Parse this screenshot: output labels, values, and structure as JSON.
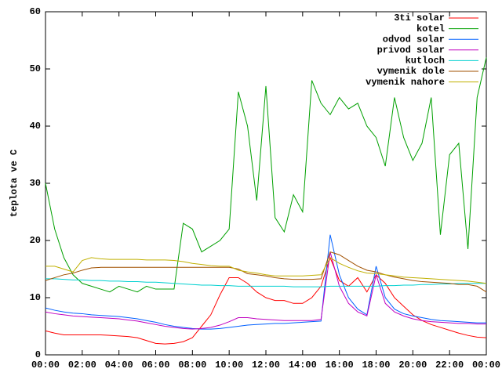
{
  "chart_data": {
    "type": "line",
    "ylabel": "teplota ve C",
    "x": [
      0,
      0.5,
      1,
      1.5,
      2,
      2.5,
      3,
      3.5,
      4,
      4.5,
      5,
      5.5,
      6,
      6.5,
      7,
      7.5,
      8,
      8.5,
      9,
      9.5,
      10,
      10.5,
      11,
      11.5,
      12,
      12.5,
      13,
      13.5,
      14,
      14.5,
      15,
      15.5,
      16,
      16.5,
      17,
      17.5,
      18,
      18.5,
      19,
      19.5,
      20,
      20.5,
      21,
      21.5,
      22,
      22.5,
      23,
      23.5,
      24
    ],
    "xlim": [
      0,
      24
    ],
    "xticks": [
      {
        "value": 0,
        "label": "00:00"
      },
      {
        "value": 2,
        "label": "02:00"
      },
      {
        "value": 4,
        "label": "04:00"
      },
      {
        "value": 6,
        "label": "06:00"
      },
      {
        "value": 8,
        "label": "08:00"
      },
      {
        "value": 10,
        "label": "10:00"
      },
      {
        "value": 12,
        "label": "12:00"
      },
      {
        "value": 14,
        "label": "14:00"
      },
      {
        "value": 16,
        "label": "16:00"
      },
      {
        "value": 18,
        "label": "18:00"
      },
      {
        "value": 20,
        "label": "20:00"
      },
      {
        "value": 22,
        "label": "22:00"
      },
      {
        "value": 24,
        "label": "00:00"
      }
    ],
    "ylim": [
      0,
      60
    ],
    "yticks": [
      0,
      10,
      20,
      30,
      40,
      50,
      60
    ],
    "legend": "top-right",
    "series": [
      {
        "name": "3ti solar",
        "color": "#ff0000",
        "values": [
          4.2,
          3.8,
          3.5,
          3.5,
          3.5,
          3.5,
          3.5,
          3.4,
          3.3,
          3.2,
          3.0,
          2.5,
          2.0,
          1.9,
          2.0,
          2.3,
          3.0,
          5.0,
          7.0,
          10.5,
          13.5,
          13.5,
          12.5,
          11,
          10,
          9.5,
          9.5,
          9.0,
          9.0,
          10,
          12,
          17,
          13,
          12,
          13.5,
          11,
          14,
          12.5,
          10,
          8.5,
          7,
          6,
          5.3,
          4.8,
          4.3,
          3.8,
          3.4,
          3.1,
          3.0
        ]
      },
      {
        "name": "kotel",
        "color": "#00a000",
        "values": [
          30,
          22,
          17,
          14,
          12.5,
          12,
          11.5,
          11,
          12,
          11.5,
          11,
          12,
          11.5,
          11.5,
          11.5,
          23,
          22,
          18,
          19,
          20,
          22,
          46,
          40,
          27,
          47,
          24,
          21.5,
          28,
          25,
          48,
          44,
          42,
          45,
          43,
          44,
          40,
          38,
          33,
          45,
          38,
          34,
          37,
          45,
          21,
          35,
          37,
          18.5,
          45,
          52
        ]
      },
      {
        "name": "odvod solar",
        "color": "#0060ff",
        "values": [
          8.2,
          7.8,
          7.5,
          7.3,
          7.2,
          7,
          6.9,
          6.8,
          6.7,
          6.5,
          6.3,
          6,
          5.7,
          5.3,
          5,
          4.8,
          4.6,
          4.5,
          4.5,
          4.6,
          4.8,
          5,
          5.2,
          5.3,
          5.4,
          5.5,
          5.5,
          5.6,
          5.7,
          5.8,
          5.9,
          21,
          14,
          10,
          8,
          7,
          15.5,
          10,
          8,
          7.2,
          6.8,
          6.5,
          6.2,
          6,
          5.9,
          5.8,
          5.7,
          5.6,
          5.6
        ]
      },
      {
        "name": "privod solar",
        "color": "#c000c0",
        "values": [
          7.5,
          7.2,
          7,
          6.8,
          6.7,
          6.6,
          6.5,
          6.4,
          6.3,
          6.1,
          5.9,
          5.6,
          5.3,
          5,
          4.8,
          4.6,
          4.5,
          4.6,
          4.8,
          5.2,
          5.8,
          6.5,
          6.5,
          6.3,
          6.2,
          6.1,
          6,
          6,
          6,
          6,
          6.2,
          18,
          12,
          9,
          7.5,
          6.8,
          14,
          9,
          7.5,
          6.8,
          6.3,
          6,
          5.8,
          5.7,
          5.6,
          5.5,
          5.5,
          5.4,
          5.4
        ]
      },
      {
        "name": "kutloch",
        "color": "#00d0d0",
        "values": [
          13.3,
          13.3,
          13.2,
          13.1,
          13.1,
          13,
          13,
          12.9,
          12.9,
          12.8,
          12.8,
          12.7,
          12.7,
          12.6,
          12.5,
          12.4,
          12.3,
          12.2,
          12.2,
          12.1,
          12.1,
          12,
          12,
          12,
          12,
          12,
          12,
          11.9,
          11.9,
          11.9,
          11.9,
          12,
          12,
          12,
          12,
          12,
          12,
          12.1,
          12.1,
          12.2,
          12.2,
          12.3,
          12.3,
          12.4,
          12.4,
          12.5,
          12.5,
          12.5,
          12.5
        ]
      },
      {
        "name": "vymenik dole",
        "color": "#a05000",
        "values": [
          13,
          13.5,
          14,
          14.3,
          14.8,
          15.2,
          15.3,
          15.3,
          15.3,
          15.3,
          15.3,
          15.3,
          15.3,
          15.3,
          15.3,
          15.3,
          15.3,
          15.3,
          15.3,
          15.3,
          15.3,
          15,
          14.2,
          14,
          13.8,
          13.5,
          13.3,
          13.2,
          13.2,
          13.2,
          13.3,
          18,
          17.5,
          16.5,
          15.5,
          14.8,
          14.5,
          14,
          13.6,
          13.3,
          13,
          12.8,
          12.7,
          12.6,
          12.5,
          12.3,
          12.3,
          12,
          11
        ]
      },
      {
        "name": "vymenik nahore",
        "color": "#c0b000",
        "values": [
          15.5,
          15.5,
          15,
          14.5,
          16.5,
          17,
          16.8,
          16.7,
          16.7,
          16.7,
          16.7,
          16.6,
          16.6,
          16.6,
          16.5,
          16.3,
          16,
          15.8,
          15.6,
          15.5,
          15.5,
          14.8,
          14.5,
          14.3,
          14,
          13.8,
          13.8,
          13.8,
          13.8,
          13.9,
          14,
          17,
          16,
          15.3,
          14.7,
          14.3,
          14.2,
          14,
          13.8,
          13.6,
          13.5,
          13.4,
          13.3,
          13.2,
          13.1,
          13,
          12.9,
          12.7,
          12.5
        ]
      }
    ]
  }
}
